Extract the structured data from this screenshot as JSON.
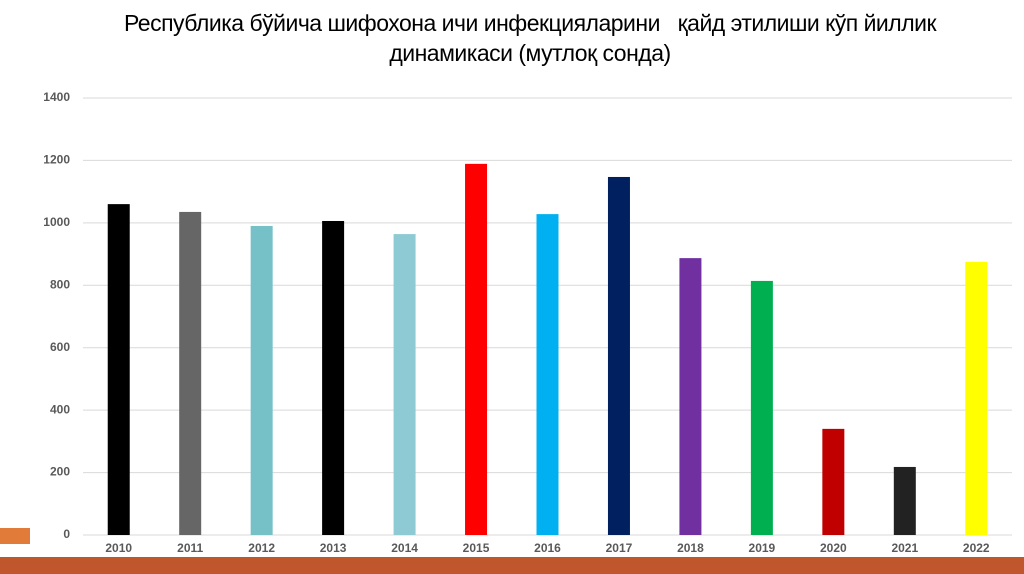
{
  "chart_data": {
    "type": "bar",
    "title": "Республика бўйича шифохона ичи инфекцияларини   қайд этилиши кўп йиллик динамикаси (мутлоқ сонда)",
    "categories": [
      "2010",
      "2011",
      "2012",
      "2013",
      "2014",
      "2015",
      "2016",
      "2017",
      "2018",
      "2019",
      "2020",
      "2021",
      "2022"
    ],
    "values": [
      1060,
      1035,
      990,
      1006,
      964,
      1189,
      1028,
      1147,
      887,
      814,
      340,
      218,
      875
    ],
    "colors": [
      "#000000",
      "#666666",
      "#76c1c8",
      "#000000",
      "#8ecad3",
      "#ff0000",
      "#00b0f0",
      "#002060",
      "#7030a0",
      "#00b050",
      "#c00000",
      "#222222",
      "#ffff00"
    ],
    "ylim": [
      0,
      1400
    ],
    "yticks": [
      0,
      200,
      400,
      600,
      800,
      1000,
      1200,
      1400
    ],
    "grid": true
  }
}
